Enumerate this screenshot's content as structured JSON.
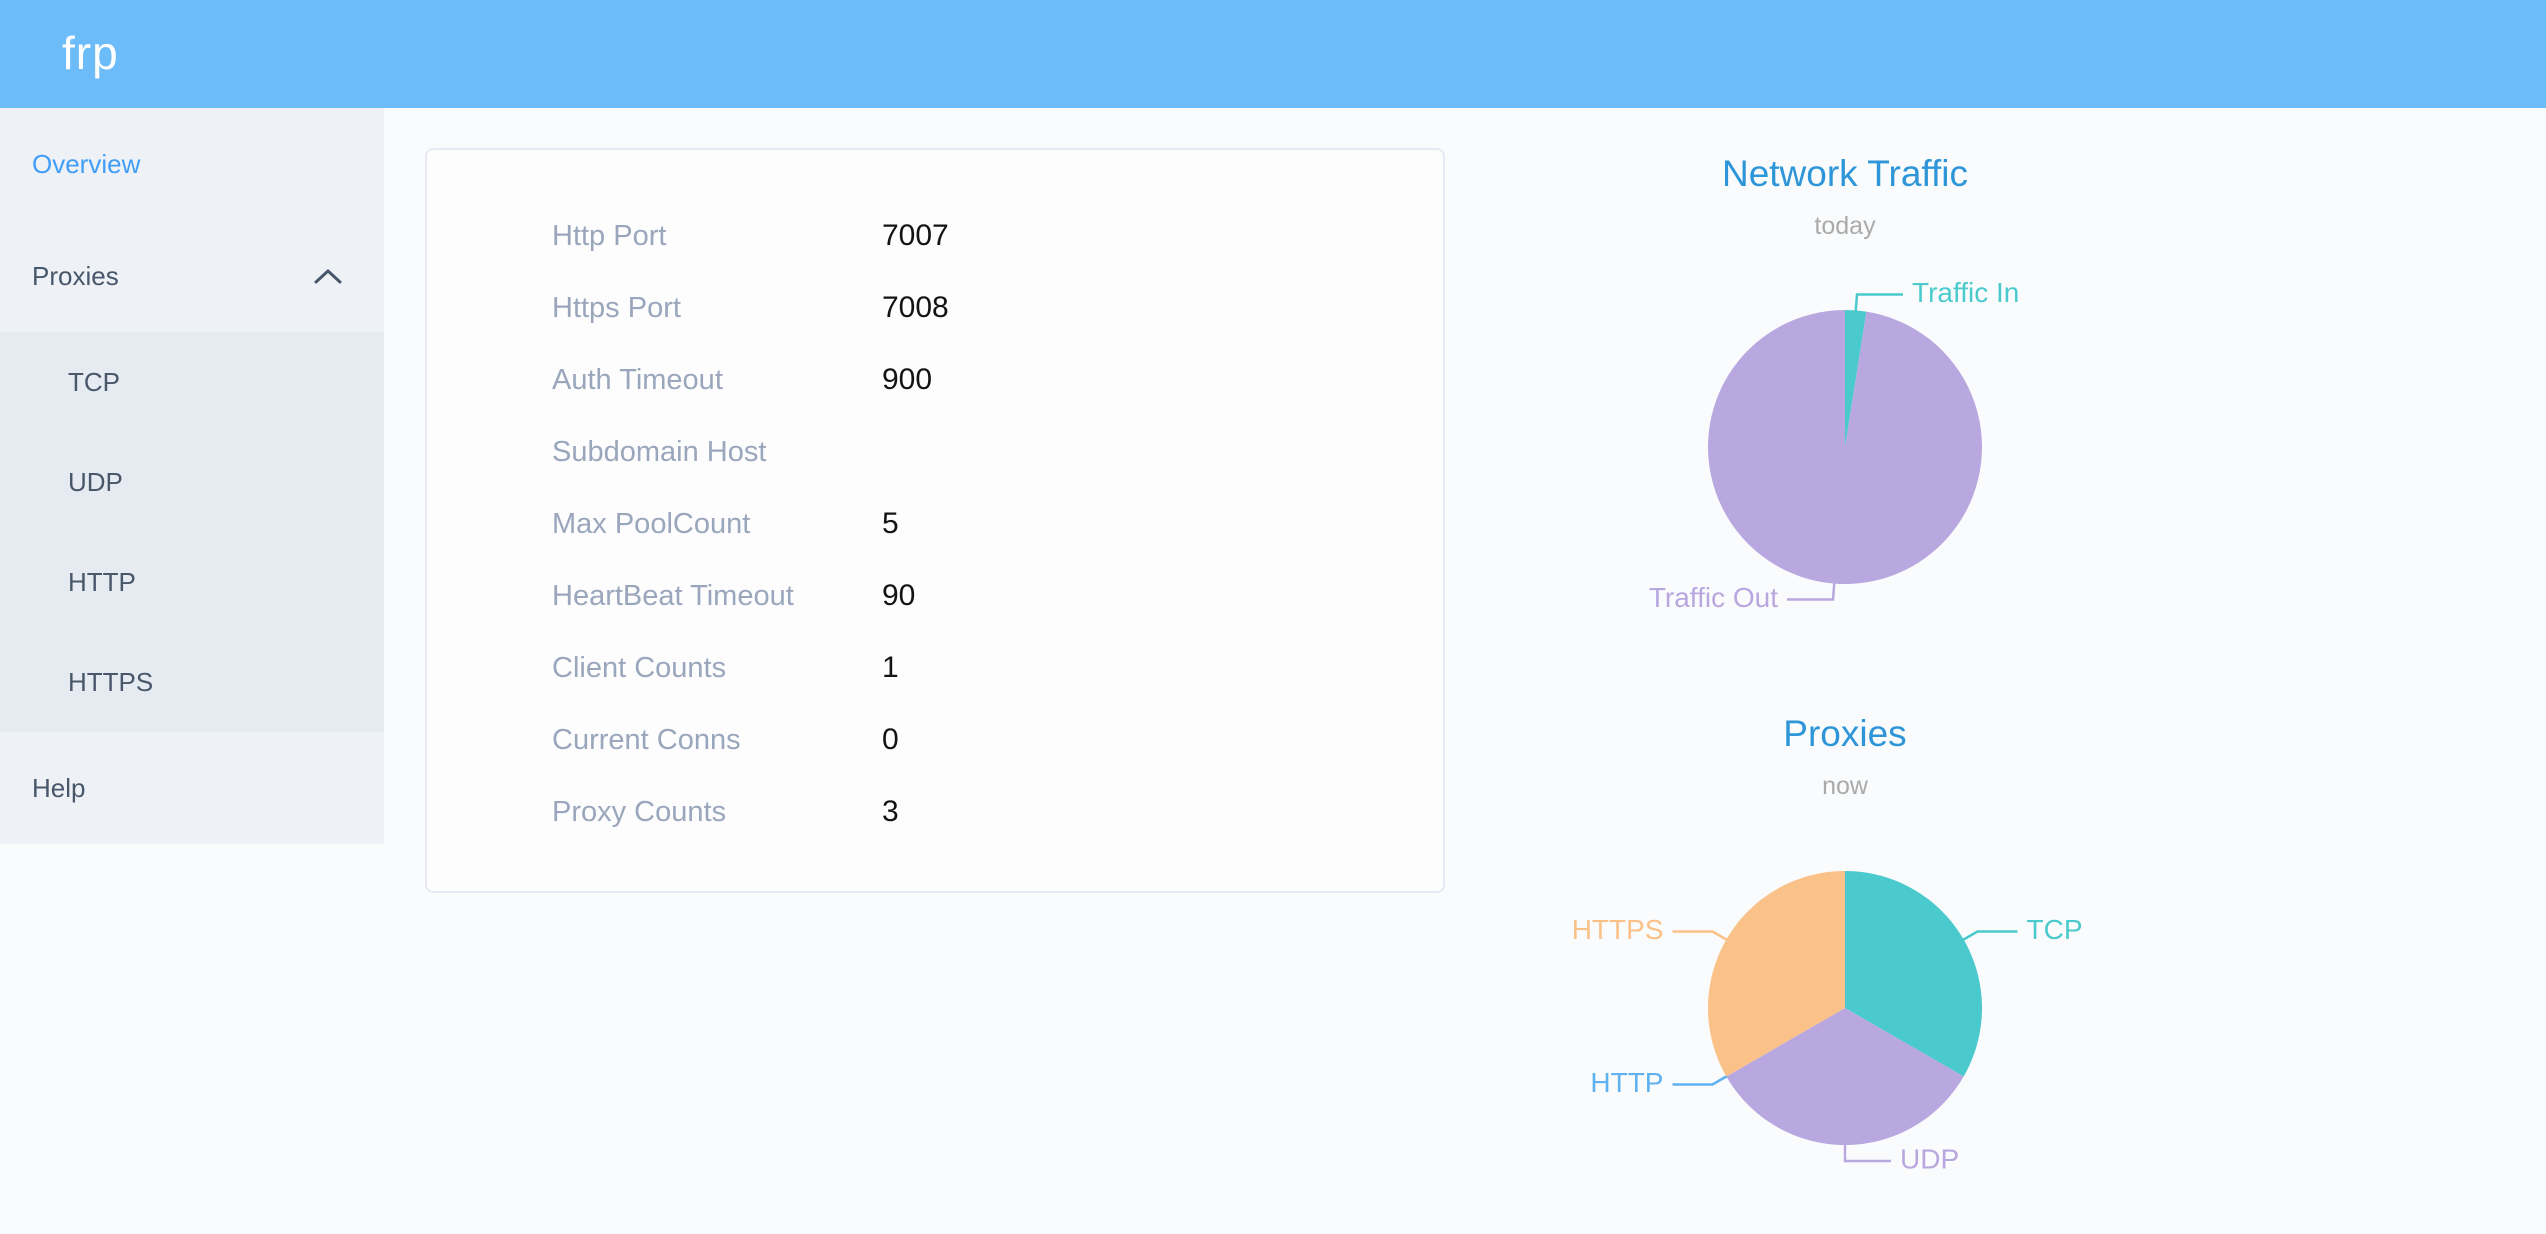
{
  "colors": {
    "header_bg": "#6cbcfa",
    "accent_blue": "#409ef7",
    "chart_title_blue": "#2e96d8",
    "menu_text": "#48576a",
    "teal": "#4bcacd",
    "purple": "#b9a7e0",
    "orange": "#fac289",
    "http_blue": "#5fb1f0"
  },
  "header": {
    "logo": "frp"
  },
  "sidebar": {
    "overview_label": "Overview",
    "proxies_label": "Proxies",
    "help_label": "Help",
    "proxies_children": [
      "TCP",
      "UDP",
      "HTTP",
      "HTTPS"
    ]
  },
  "server_info": {
    "rows": [
      {
        "label": "Http Port",
        "value": "7007"
      },
      {
        "label": "Https Port",
        "value": "7008"
      },
      {
        "label": "Auth Timeout",
        "value": "900"
      },
      {
        "label": "Subdomain Host",
        "value": ""
      },
      {
        "label": "Max PoolCount",
        "value": "5"
      },
      {
        "label": "HeartBeat Timeout",
        "value": "90"
      },
      {
        "label": "Client Counts",
        "value": "1"
      },
      {
        "label": "Current Conns",
        "value": "0"
      },
      {
        "label": "Proxy Counts",
        "value": "3"
      }
    ]
  },
  "chart_data": [
    {
      "type": "pie",
      "title": "Network Traffic",
      "subtitle": "today",
      "legend_position": "callout-labels",
      "slices": [
        {
          "label": "Traffic In",
          "value": 2.5,
          "color": "#4bcacd"
        },
        {
          "label": "Traffic Out",
          "value": 97.5,
          "color": "#b9a7e0"
        }
      ]
    },
    {
      "type": "pie",
      "title": "Proxies",
      "subtitle": "now",
      "legend_position": "callout-labels",
      "slices": [
        {
          "label": "TCP",
          "value": 1,
          "color": "#4bcacd"
        },
        {
          "label": "UDP",
          "value": 1,
          "color": "#b9a7e0"
        },
        {
          "label": "HTTP",
          "value": 0,
          "color": "#5fb1f0"
        },
        {
          "label": "HTTPS",
          "value": 1,
          "color": "#fac289"
        }
      ]
    }
  ]
}
